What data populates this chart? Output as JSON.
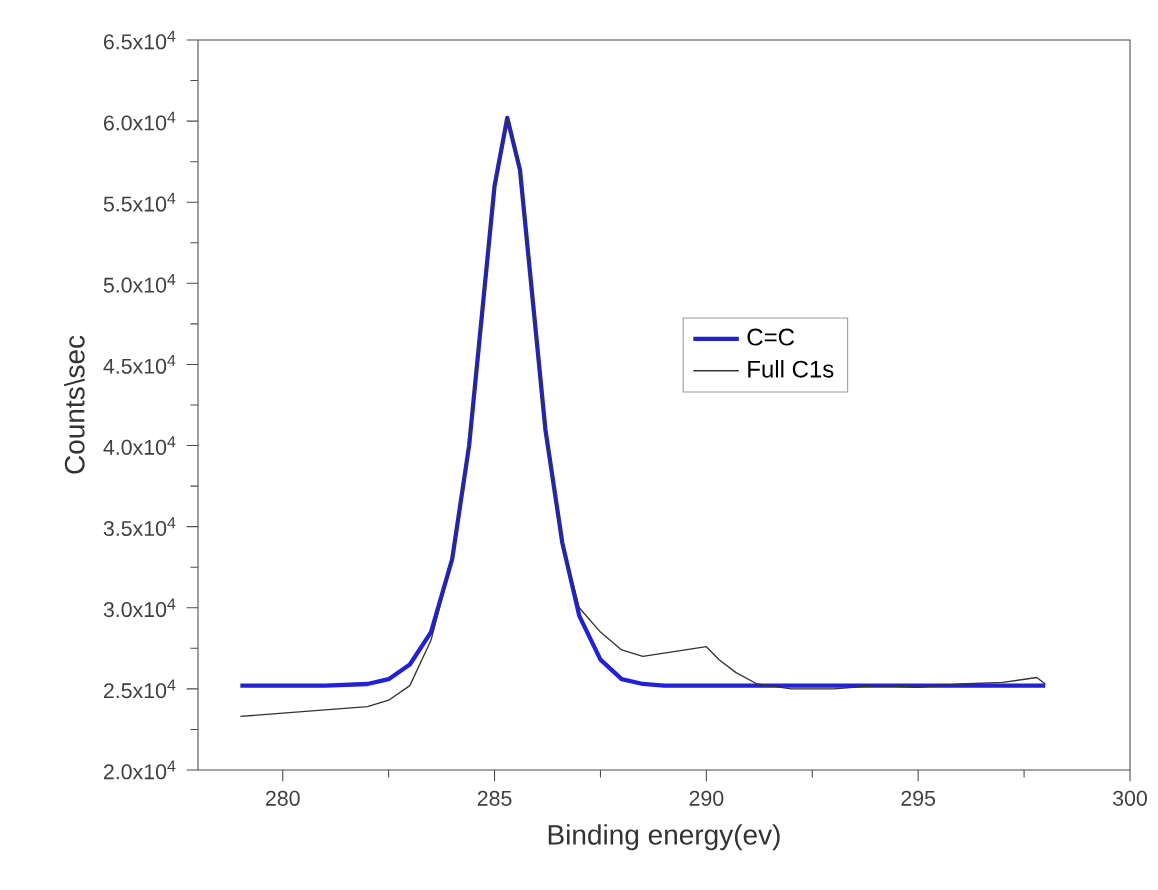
{
  "chart_data": {
    "type": "line",
    "xlabel": "Binding energy(ev)",
    "ylabel": "Counts\\sec",
    "xlim": [
      278,
      300
    ],
    "xticks": [
      280,
      285,
      290,
      295,
      300
    ],
    "ylim": [
      20000,
      65000
    ],
    "yticks": [
      {
        "value": 20000,
        "label": "2.0x10$^{4}$"
      },
      {
        "value": 25000,
        "label": "2.5x10$^{4}$"
      },
      {
        "value": 30000,
        "label": "3.0x10$^{4}$"
      },
      {
        "value": 35000,
        "label": "3.5x10$^{4}$"
      },
      {
        "value": 40000,
        "label": "4.0x10$^{4}$"
      },
      {
        "value": 45000,
        "label": "4.5x10$^{4}$"
      },
      {
        "value": 50000,
        "label": "5.0x10$^{4}$"
      },
      {
        "value": 55000,
        "label": "5.5x10$^{4}$"
      },
      {
        "value": 60000,
        "label": "6.0x10$^{4}$"
      },
      {
        "value": 65000,
        "label": "6.5x10$^{4}$"
      }
    ],
    "legend": "right",
    "grid": false,
    "marker": "none",
    "series": [
      {
        "name": "C=C",
        "color": "#2121d6",
        "x": [
          279,
          281,
          282,
          282.5,
          283,
          283.5,
          284,
          284.4,
          284.7,
          285.0,
          285.3,
          285.6,
          285.9,
          286.2,
          286.6,
          287,
          287.5,
          288,
          288.5,
          289,
          292,
          298
        ],
        "values": [
          25200,
          25200,
          25300,
          25600,
          26500,
          28500,
          33000,
          40000,
          48000,
          56000,
          60200,
          57000,
          49000,
          41000,
          34000,
          29500,
          26800,
          25600,
          25300,
          25200,
          25200,
          25200
        ]
      },
      {
        "name": "Full C1s",
        "color": "#333333",
        "x": [
          279,
          280,
          281,
          282,
          282.5,
          283,
          283.5,
          284,
          284.4,
          284.7,
          285.0,
          285.3,
          285.6,
          285.9,
          286.2,
          286.6,
          287,
          287.5,
          288,
          288.5,
          289,
          289.5,
          290,
          290.3,
          290.7,
          291.2,
          292,
          293,
          294,
          295,
          296,
          297,
          297.8,
          298
        ],
        "values": [
          23300,
          23500,
          23700,
          23900,
          24300,
          25200,
          28000,
          33000,
          40000,
          48000,
          56000,
          60200,
          57000,
          49000,
          41000,
          34000,
          30000,
          28500,
          27400,
          27000,
          27200,
          27400,
          27600,
          26800,
          26000,
          25300,
          25000,
          25000,
          25200,
          25100,
          25300,
          25400,
          25700,
          25300
        ]
      }
    ]
  }
}
